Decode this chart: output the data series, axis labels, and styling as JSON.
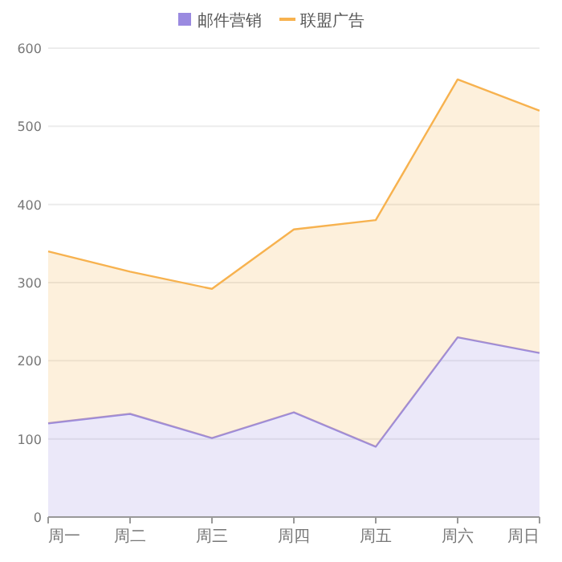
{
  "chart_data": {
    "type": "area",
    "stacked": true,
    "categories": [
      "周一",
      "周二",
      "周三",
      "周四",
      "周五",
      "周六",
      "周日"
    ],
    "series": [
      {
        "name": "邮件营销",
        "color": "#9a8ae0",
        "values": [
          120,
          132,
          101,
          134,
          90,
          230,
          210
        ]
      },
      {
        "name": "联盟广告",
        "color": "#f7b24f",
        "values": [
          220,
          182,
          191,
          234,
          290,
          330,
          310
        ]
      }
    ],
    "ylim": [
      0,
      600
    ],
    "yticks": [
      0,
      100,
      200,
      300,
      400,
      500,
      600
    ],
    "grid": "y",
    "legend": "top"
  }
}
